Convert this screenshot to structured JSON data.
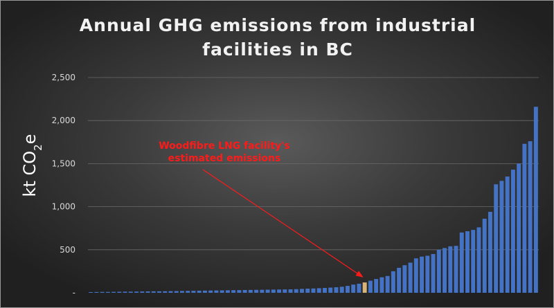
{
  "chart_data": {
    "type": "bar",
    "title": "Annual GHG emissions from industrial facilities in BC",
    "ylabel": "kt CO2e",
    "ylim": [
      0,
      2500
    ],
    "yticks": [
      "-",
      "500",
      "1,000",
      "1,500",
      "2,000",
      "2,500"
    ],
    "grid": "horizontal",
    "colors": {
      "bar": "#4472c4",
      "highlight": "#d6b47a",
      "annotation": "#ff1a1a",
      "tick": "#d9d9d9"
    },
    "highlight_index": 48,
    "values": [
      8,
      9,
      10,
      10,
      11,
      12,
      13,
      13,
      14,
      15,
      16,
      17,
      17,
      18,
      19,
      20,
      21,
      22,
      23,
      24,
      25,
      26,
      27,
      28,
      29,
      30,
      31,
      32,
      33,
      34,
      35,
      36,
      37,
      38,
      39,
      40,
      42,
      45,
      48,
      50,
      53,
      56,
      60,
      64,
      70,
      80,
      95,
      105,
      120,
      140,
      160,
      180,
      195,
      250,
      290,
      320,
      350,
      400,
      420,
      430,
      450,
      500,
      520,
      540,
      545,
      700,
      715,
      730,
      760,
      860,
      940,
      1260,
      1300,
      1350,
      1430,
      1500,
      1730,
      1760,
      2160
    ],
    "annotation": {
      "lines": [
        "Woodfibre LNG facility's",
        "estimated emissions"
      ]
    }
  }
}
